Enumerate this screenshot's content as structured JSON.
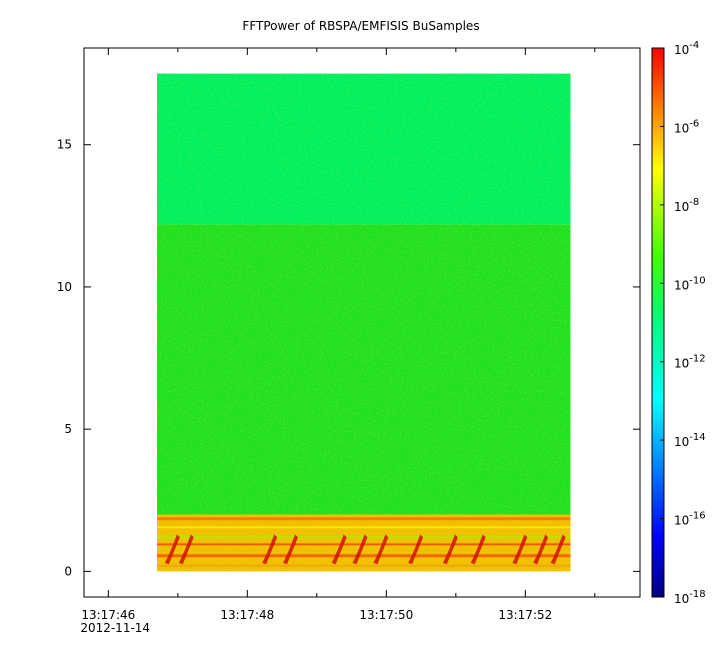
{
  "chart_data": {
    "type": "heatmap",
    "title": "FFTPower of RBSPA/EMFISIS  BuSamples",
    "xlabel": "",
    "ylabel": "",
    "x_ticks": [
      {
        "label": "13:17:46",
        "sublabel": "2012-11-14",
        "t": 0
      },
      {
        "label": "13:17:48",
        "t": 2
      },
      {
        "label": "13:17:50",
        "t": 4
      },
      {
        "label": "13:17:52",
        "t": 6
      }
    ],
    "x_minor_ticks": [
      1,
      3,
      5,
      7
    ],
    "xlim_seconds": [
      -0.35,
      7.65
    ],
    "data_time_range_seconds": [
      0.7,
      6.65
    ],
    "y_ticks": [
      0,
      5,
      10,
      15
    ],
    "ylim": [
      -0.9,
      18.4
    ],
    "data_y_range": [
      0,
      17.5
    ],
    "colorbar": {
      "scale": "log",
      "range": [
        1e-18,
        0.0001
      ],
      "tick_mantissa": "10",
      "tick_exponents": [
        "-18",
        "-16",
        "-14",
        "-12",
        "-10",
        "-8",
        "-6",
        "-4"
      ]
    },
    "bands": [
      {
        "y_from": 12.2,
        "y_to": 17.5,
        "level": "~1e-12",
        "color": "#00f060"
      },
      {
        "y_from": 2.0,
        "y_to": 12.2,
        "level": "~1e-10",
        "color": "#20e020"
      },
      {
        "y_from": 0.0,
        "y_to": 2.0,
        "level": "~1e-7 to 1e-6",
        "color": "#f0c000"
      }
    ]
  }
}
